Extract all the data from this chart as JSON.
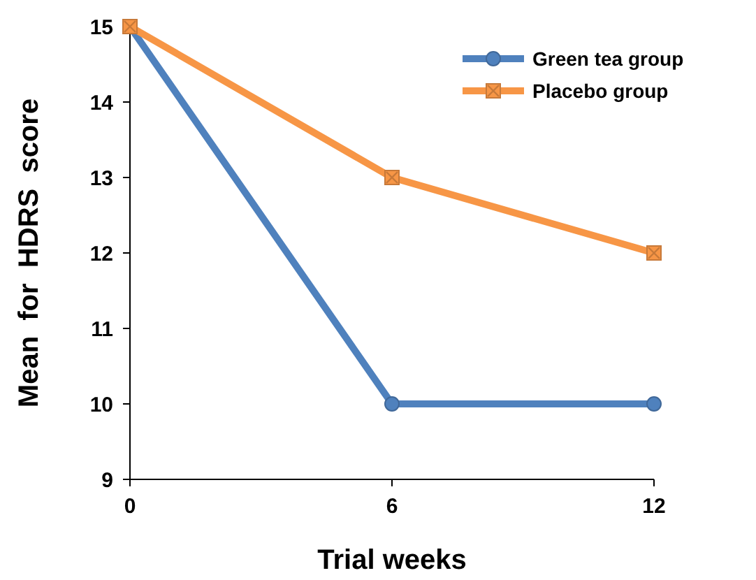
{
  "chart_data": {
    "type": "line",
    "xlabel": "Trial weeks",
    "ylabel": "Mean  for  HDRS  score",
    "x": [
      0,
      6,
      12
    ],
    "xlim": [
      0,
      12
    ],
    "xticks": [
      0,
      6,
      12
    ],
    "ylim": [
      9,
      15
    ],
    "yticks": [
      9,
      10,
      11,
      12,
      13,
      14,
      15
    ],
    "grid": false,
    "legend": "top right",
    "line_style": "solid",
    "series": [
      {
        "name": "Green tea group",
        "color": "#4f81bd",
        "values": [
          15,
          10,
          10
        ],
        "marker": "circle"
      },
      {
        "name": "Placebo group",
        "color": "#f79646",
        "values": [
          15,
          13,
          12
        ],
        "marker": "square"
      }
    ]
  }
}
